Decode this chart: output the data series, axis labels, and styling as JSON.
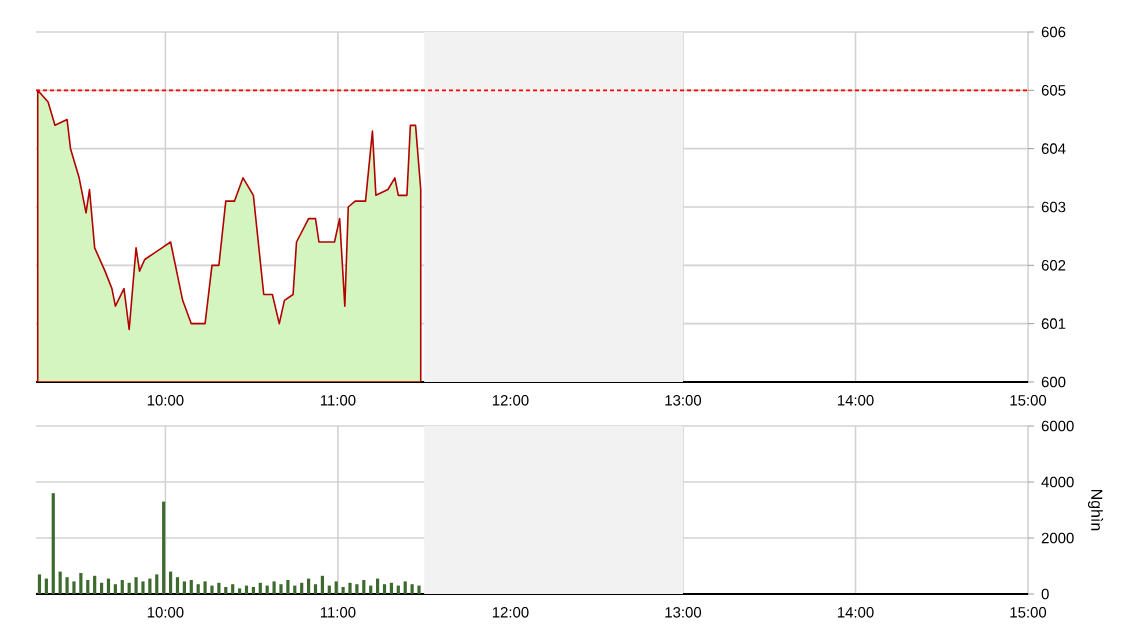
{
  "chart_data": [
    {
      "type": "area",
      "x": [
        9.26,
        9.32,
        9.36,
        9.43,
        9.45,
        9.5,
        9.54,
        9.56,
        9.59,
        9.65,
        9.69,
        9.71,
        9.76,
        9.79,
        9.83,
        9.85,
        9.88,
        9.98,
        10.03,
        10.1,
        10.15,
        10.23,
        10.27,
        10.31,
        10.35,
        10.4,
        10.45,
        10.51,
        10.57,
        10.62,
        10.66,
        10.69,
        10.74,
        10.76,
        10.83,
        10.87,
        10.89,
        10.98,
        11.01,
        11.04,
        11.06,
        11.1,
        11.16,
        11.2,
        11.22,
        11.29,
        11.33,
        11.35,
        11.4,
        11.42,
        11.45,
        11.48
      ],
      "series": [
        {
          "color": "#d5f5c0",
          "values": [
            605.0,
            604.8,
            604.4,
            604.5,
            604.0,
            603.5,
            602.9,
            603.3,
            602.3,
            601.9,
            601.6,
            601.3,
            601.6,
            600.9,
            602.3,
            601.9,
            602.1,
            602.3,
            602.4,
            601.4,
            601.0,
            601.0,
            602.0,
            602.0,
            603.1,
            603.1,
            603.5,
            603.2,
            601.5,
            601.5,
            601.0,
            601.4,
            601.5,
            602.4,
            602.8,
            602.8,
            602.4,
            602.4,
            602.8,
            601.3,
            603.0,
            603.1,
            603.1,
            604.3,
            603.2,
            603.3,
            603.5,
            603.2,
            603.2,
            604.4,
            604.4,
            603.3
          ]
        }
      ],
      "xlim": [
        9.25,
        15
      ],
      "xticks": [
        {
          "value": 10,
          "label": "10:00"
        },
        {
          "value": 11,
          "label": "11:00"
        },
        {
          "value": 12,
          "label": "12:00"
        },
        {
          "value": 13,
          "label": "13:00"
        },
        {
          "value": 14,
          "label": "14:00"
        },
        {
          "value": 15,
          "label": "15:00"
        }
      ],
      "ylim": [
        600,
        606
      ],
      "yticks": [
        600,
        601,
        602,
        603,
        604,
        605,
        606
      ],
      "grid": true,
      "ref_lines": [
        {
          "axis": "y",
          "value": 605,
          "color": "#ff0000",
          "line_style": "dashed"
        }
      ],
      "bands": [
        {
          "axis": "x",
          "from": 11.5,
          "to": 13,
          "color": "#f2f2f2"
        }
      ]
    },
    {
      "type": "bar",
      "x": [
        9.27,
        9.31,
        9.35,
        9.39,
        9.43,
        9.47,
        9.51,
        9.55,
        9.59,
        9.63,
        9.67,
        9.71,
        9.75,
        9.79,
        9.83,
        9.87,
        9.91,
        9.95,
        9.99,
        10.03,
        10.07,
        10.11,
        10.15,
        10.19,
        10.23,
        10.27,
        10.31,
        10.35,
        10.39,
        10.43,
        10.47,
        10.51,
        10.55,
        10.59,
        10.63,
        10.67,
        10.71,
        10.75,
        10.79,
        10.83,
        10.87,
        10.91,
        10.95,
        10.99,
        11.03,
        11.07,
        11.11,
        11.15,
        11.19,
        11.23,
        11.27,
        11.31,
        11.35,
        11.39,
        11.43,
        11.47
      ],
      "series": [
        {
          "color": "#3d6b2e",
          "values": [
            700,
            550,
            3600,
            800,
            600,
            450,
            750,
            500,
            650,
            400,
            550,
            350,
            500,
            400,
            600,
            450,
            550,
            700,
            3300,
            800,
            600,
            450,
            500,
            350,
            450,
            300,
            400,
            250,
            350,
            200,
            300,
            250,
            400,
            300,
            450,
            350,
            500,
            300,
            400,
            550,
            350,
            650,
            300,
            450,
            250,
            400,
            350,
            500,
            300,
            550,
            350,
            400,
            300,
            450,
            350,
            300
          ]
        }
      ],
      "xlim": [
        9.25,
        15
      ],
      "xticks": [
        {
          "value": 10,
          "label": "10:00"
        },
        {
          "value": 11,
          "label": "11:00"
        },
        {
          "value": 12,
          "label": "12:00"
        },
        {
          "value": 13,
          "label": "13:00"
        },
        {
          "value": 14,
          "label": "14:00"
        },
        {
          "value": 15,
          "label": "15:00"
        }
      ],
      "ylim": [
        0,
        6000
      ],
      "yticks": [
        0,
        2000,
        4000,
        6000
      ],
      "ylabel": "Nghìn",
      "grid": true,
      "bands": [
        {
          "axis": "x",
          "from": 11.5,
          "to": 13,
          "color": "#f2f2f2"
        }
      ]
    }
  ]
}
